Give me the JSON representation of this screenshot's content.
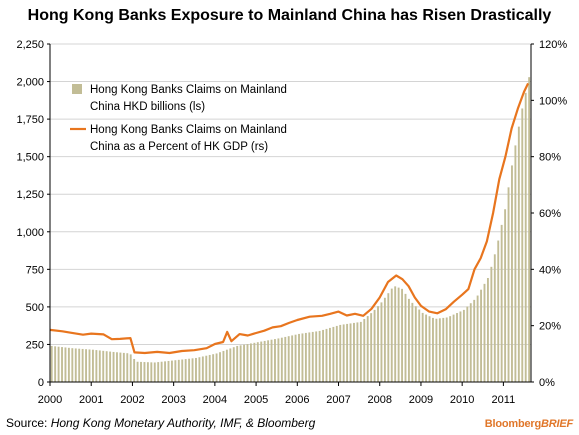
{
  "chart_data": {
    "type": "bar+line",
    "title": "Hong Kong Banks Exposure to Mainland China has Risen Drastically",
    "source_label": "Source:",
    "source_text": "Hong Kong Monetary Authority, IMF, & Bloomberg",
    "brand": {
      "part1": "Bloomberg",
      "part2": "BRIEF"
    },
    "left_axis": {
      "ylim": [
        0,
        2250
      ],
      "ticks": [
        "0",
        "250",
        "500",
        "750",
        "1,000",
        "1,250",
        "1,500",
        "1,750",
        "2,000",
        "2,250"
      ]
    },
    "right_axis": {
      "ylim": [
        0,
        120
      ],
      "ticks": [
        "0%",
        "20%",
        "40%",
        "60%",
        "80%",
        "100%",
        "120%"
      ]
    },
    "x_axis": {
      "xlim": [
        2000,
        2011.67
      ],
      "ticks": [
        "2000",
        "2001",
        "2002",
        "2003",
        "2004",
        "2005",
        "2006",
        "2007",
        "2008",
        "2009",
        "2010",
        "2011"
      ]
    },
    "grid": "horizontal",
    "legend_placement": "top-left",
    "colors": {
      "bars": "#c2bd96",
      "line": "#e8751e",
      "grid": "#d4d4d4",
      "brand": "#e0772a"
    },
    "series": [
      {
        "name_lines": [
          "Hong Kong Banks Claims on Mainland",
          "China HKD billions (ls)"
        ],
        "type": "bar",
        "axis": "left",
        "points": [
          [
            2000,
            240
          ],
          [
            2000.5,
            225
          ],
          [
            2001,
            215
          ],
          [
            2001.5,
            200
          ],
          [
            2001.9,
            190
          ],
          [
            2002.05,
            135
          ],
          [
            2002.5,
            130
          ],
          [
            2003,
            145
          ],
          [
            2003.5,
            160
          ],
          [
            2004,
            190
          ],
          [
            2004.3,
            220
          ],
          [
            2004.5,
            240
          ],
          [
            2005,
            265
          ],
          [
            2005.5,
            290
          ],
          [
            2006,
            320
          ],
          [
            2006.5,
            340
          ],
          [
            2007,
            380
          ],
          [
            2007.5,
            400
          ],
          [
            2007.8,
            470
          ],
          [
            2008,
            530
          ],
          [
            2008.3,
            640
          ],
          [
            2008.5,
            620
          ],
          [
            2008.7,
            540
          ],
          [
            2009,
            460
          ],
          [
            2009.3,
            420
          ],
          [
            2009.6,
            430
          ],
          [
            2010,
            480
          ],
          [
            2010.3,
            560
          ],
          [
            2010.6,
            700
          ],
          [
            2010.8,
            900
          ],
          [
            2011,
            1150
          ],
          [
            2011.2,
            1500
          ],
          [
            2011.4,
            1800
          ],
          [
            2011.6,
            2050
          ]
        ]
      },
      {
        "name_lines": [
          "Hong Kong Banks Claims on Mainland",
          "China as a Percent of HK GDP (rs)"
        ],
        "type": "line",
        "axis": "right",
        "points": [
          [
            2000,
            18.5
          ],
          [
            2000.3,
            18.0
          ],
          [
            2000.5,
            17.5
          ],
          [
            2000.8,
            16.8
          ],
          [
            2001,
            17.2
          ],
          [
            2001.3,
            16.9
          ],
          [
            2001.5,
            15.2
          ],
          [
            2001.7,
            15.3
          ],
          [
            2001.95,
            15.6
          ],
          [
            2002.05,
            10.5
          ],
          [
            2002.3,
            10.3
          ],
          [
            2002.6,
            10.7
          ],
          [
            2002.9,
            10.3
          ],
          [
            2003.2,
            11.0
          ],
          [
            2003.5,
            11.3
          ],
          [
            2003.8,
            12.0
          ],
          [
            2004,
            13.5
          ],
          [
            2004.2,
            14.2
          ],
          [
            2004.3,
            17.8
          ],
          [
            2004.4,
            14.5
          ],
          [
            2004.6,
            17.0
          ],
          [
            2004.8,
            16.5
          ],
          [
            2005,
            17.4
          ],
          [
            2005.2,
            18.2
          ],
          [
            2005.4,
            19.4
          ],
          [
            2005.6,
            19.8
          ],
          [
            2005.8,
            21.0
          ],
          [
            2006,
            22.0
          ],
          [
            2006.3,
            23.2
          ],
          [
            2006.6,
            23.5
          ],
          [
            2006.8,
            24.2
          ],
          [
            2007,
            25.0
          ],
          [
            2007.2,
            23.6
          ],
          [
            2007.4,
            24.2
          ],
          [
            2007.6,
            23.5
          ],
          [
            2007.8,
            26.0
          ],
          [
            2008,
            30.0
          ],
          [
            2008.2,
            35.5
          ],
          [
            2008.4,
            37.8
          ],
          [
            2008.55,
            36.5
          ],
          [
            2008.7,
            34.0
          ],
          [
            2008.85,
            30.0
          ],
          [
            2009,
            27.0
          ],
          [
            2009.2,
            25.0
          ],
          [
            2009.4,
            24.4
          ],
          [
            2009.6,
            25.8
          ],
          [
            2009.8,
            28.5
          ],
          [
            2010,
            31.0
          ],
          [
            2010.15,
            33.0
          ],
          [
            2010.3,
            40.0
          ],
          [
            2010.45,
            44.0
          ],
          [
            2010.6,
            50.0
          ],
          [
            2010.75,
            60.0
          ],
          [
            2010.9,
            72.0
          ],
          [
            2011.05,
            80.0
          ],
          [
            2011.2,
            90.0
          ],
          [
            2011.35,
            97.0
          ],
          [
            2011.5,
            103.0
          ],
          [
            2011.6,
            106.0
          ]
        ]
      }
    ]
  }
}
